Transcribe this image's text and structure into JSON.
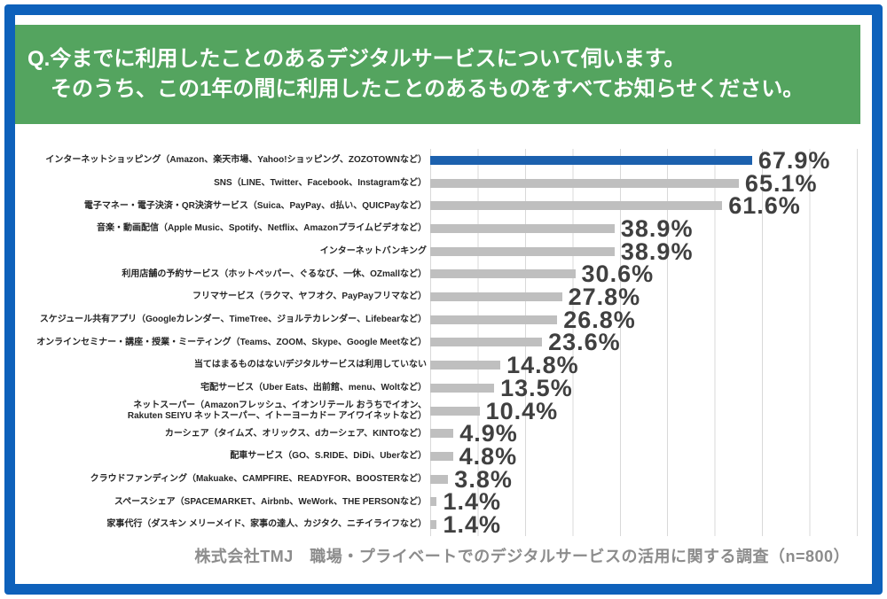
{
  "header": {
    "line1": "Q.今までに利用したことのあるデジタルサービスについて伺います。",
    "line2": "そのうち、この1年の間に利用したことのあるものをすべてお知らせください。",
    "bg_color": "#54a45f"
  },
  "footer": {
    "text": "株式会社TMJ　職場・プライベートでのデジタルサービスの活用に関する調査（n=800）"
  },
  "chart_data": {
    "type": "bar",
    "orientation": "horizontal",
    "title": "",
    "xlabel": "",
    "ylabel": "",
    "xlim": [
      0,
      90
    ],
    "gridline_interval": 10,
    "grid": "vertical",
    "legend": "none",
    "unit": "%",
    "highlight_index": 0,
    "highlight_color": "#1c61ae",
    "bar_color": "#bfbfbf",
    "gridline_color": "#d9d9d9",
    "categories": [
      [
        "インターネットショッピング（Amazon、楽天市場、Yahoo!ショッピング、ZOZOTOWNなど）"
      ],
      [
        "SNS（LINE、Twitter、Facebook、Instagramなど）"
      ],
      [
        "電子マネー・電子決済・QR決済サービス（Suica、PayPay、d払い、QUICPayなど）"
      ],
      [
        "音楽・動画配信（Apple Music、Spotify、Netflix、Amazonプライムビデオなど）"
      ],
      [
        "インターネットバンキング"
      ],
      [
        "利用店舗の予約サービス（ホットペッパー、ぐるなび、一休、OZmallなど）"
      ],
      [
        "フリマサービス（ラクマ、ヤフオク、PayPayフリマなど）"
      ],
      [
        "スケジュール共有アプリ（Googleカレンダー、TimeTree、ジョルテカレンダー、Lifebearなど）"
      ],
      [
        "オンラインセミナー・講座・授業・ミーティング（Teams、ZOOM、Skype、Google Meetなど）"
      ],
      [
        "当てはまるものはない/デジタルサービスは利用していない"
      ],
      [
        "宅配サービス（Uber Eats、出前館、menu、Woltなど）"
      ],
      [
        "ネットスーパー（Amazonフレッシュ、イオンリテール おうちでイオン、",
        "Rakuten SEIYU ネットスーパー、イトーヨーカドー アイワイネットなど）"
      ],
      [
        "カーシェア（タイムズ、オリックス、dカーシェア、KINTOなど）"
      ],
      [
        "配車サービス（GO、S.RIDE、DiDi、Uberなど）"
      ],
      [
        "クラウドファンディング（Makuake、CAMPFIRE、READYFOR、BOOSTERなど）"
      ],
      [
        "スペースシェア（SPACEMARKET、Airbnb、WeWork、THE PERSONなど）"
      ],
      [
        "家事代行（ダスキン メリーメイド、家事の達人、カジタク、ニチイライフなど）"
      ]
    ],
    "values": [
      67.9,
      65.1,
      61.6,
      38.9,
      38.9,
      30.6,
      27.8,
      26.8,
      23.6,
      14.8,
      13.5,
      10.4,
      4.9,
      4.8,
      3.8,
      1.4,
      1.4
    ],
    "value_labels": [
      "67.9%",
      "65.1%",
      "61.6%",
      "38.9%",
      "38.9%",
      "30.6%",
      "27.8%",
      "26.8%",
      "23.6%",
      "14.8%",
      "13.5%",
      "10.4%",
      "4.9%",
      "4.8%",
      "3.8%",
      "1.4%",
      "1.4%"
    ]
  }
}
